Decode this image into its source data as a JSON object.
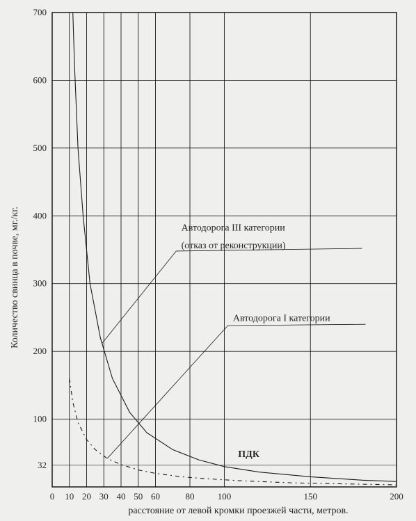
{
  "background_color": "#efefee",
  "plot": {
    "type": "line",
    "plot_bg": "#efefee",
    "x": {
      "lim": [
        0,
        200
      ],
      "ticks": [
        0,
        10,
        20,
        30,
        40,
        50,
        60,
        80,
        100,
        150,
        200
      ],
      "label": "расстояние от левой кромки проезжей части, метров."
    },
    "y": {
      "lim": [
        0,
        700
      ],
      "ticks": [
        32,
        100,
        200,
        300,
        400,
        500,
        600,
        700
      ],
      "label": "Количество свинца в почве, мг./кг."
    },
    "grid_color": "#1a1a1a",
    "grid_width": 0.9,
    "curves": {
      "road_III": {
        "points": [
          [
            12,
            700
          ],
          [
            13,
            620
          ],
          [
            15,
            500
          ],
          [
            18,
            400
          ],
          [
            22,
            300
          ],
          [
            28,
            220
          ],
          [
            35,
            160
          ],
          [
            45,
            110
          ],
          [
            55,
            80
          ],
          [
            70,
            55
          ],
          [
            85,
            40
          ],
          [
            100,
            30
          ],
          [
            120,
            22
          ],
          [
            150,
            15
          ],
          [
            180,
            10
          ],
          [
            200,
            8
          ]
        ],
        "stroke": "#1a1a1a",
        "width": 1.1,
        "dash": "none"
      },
      "road_I": {
        "points": [
          [
            10,
            160
          ],
          [
            12,
            125
          ],
          [
            15,
            95
          ],
          [
            20,
            70
          ],
          [
            25,
            55
          ],
          [
            32,
            42
          ],
          [
            40,
            33
          ],
          [
            50,
            25
          ],
          [
            60,
            20
          ],
          [
            75,
            15
          ],
          [
            90,
            12
          ],
          [
            110,
            9
          ],
          [
            140,
            6
          ],
          [
            180,
            4
          ],
          [
            200,
            3
          ]
        ],
        "stroke": "#1a1a1a",
        "width": 1.1,
        "dash": "6 5 2 5"
      },
      "pdk": {
        "y": 32,
        "stroke": "#1a1a1a",
        "width": 1.0,
        "dash": "none"
      }
    },
    "annotations": {
      "road_III_l1": "Автодорога III категории",
      "road_III_l2": "(отказ от реконструкции)",
      "road_I": "Автодорога I категории",
      "pdk": "ПДК"
    },
    "fontsize_label": 14,
    "fontsize_tick": 13,
    "fontsize_annot": 14
  }
}
